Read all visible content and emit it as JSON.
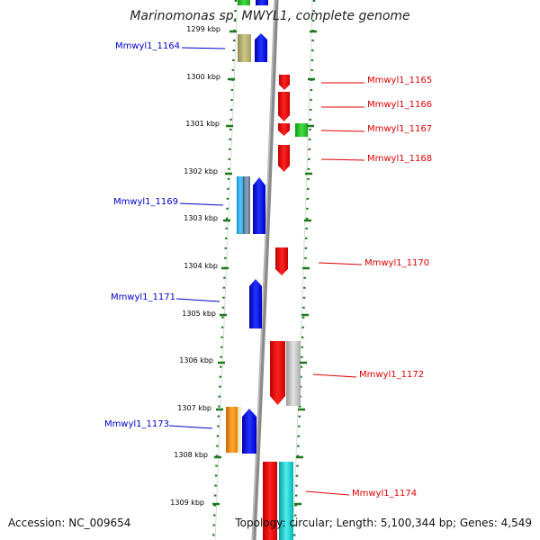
{
  "title": "Marinomonas sp. MWYL1, complete genome",
  "footer": {
    "accession": "Accession: NC_009654",
    "summary": "Topology: circular; Length: 5,100,344 bp; Genes: 4,549"
  },
  "colors": {
    "backbone": "#8a8a8a",
    "tick": "#1a7a1a",
    "left_label": "#0000cc",
    "right_label": "#dd0000"
  },
  "kbp_ticks": [
    "1299 kbp",
    "1300 kbp",
    "1301 kbp",
    "1302 kbp",
    "1303 kbp",
    "1304 kbp",
    "1305 kbp",
    "1306 kbp",
    "1307 kbp",
    "1308 kbp",
    "1309 kbp"
  ],
  "genes_left": [
    {
      "label": "Mmwyl1_1164"
    },
    {
      "label": "Mmwyl1_1169"
    },
    {
      "label": "Mmwyl1_1171"
    },
    {
      "label": "Mmwyl1_1173"
    }
  ],
  "genes_right": [
    {
      "label": "Mmwyl1_1165"
    },
    {
      "label": "Mmwyl1_1166"
    },
    {
      "label": "Mmwyl1_1167"
    },
    {
      "label": "Mmwyl1_1168"
    },
    {
      "label": "Mmwyl1_1170"
    },
    {
      "label": "Mmwyl1_1172"
    },
    {
      "label": "Mmwyl1_1174"
    }
  ]
}
